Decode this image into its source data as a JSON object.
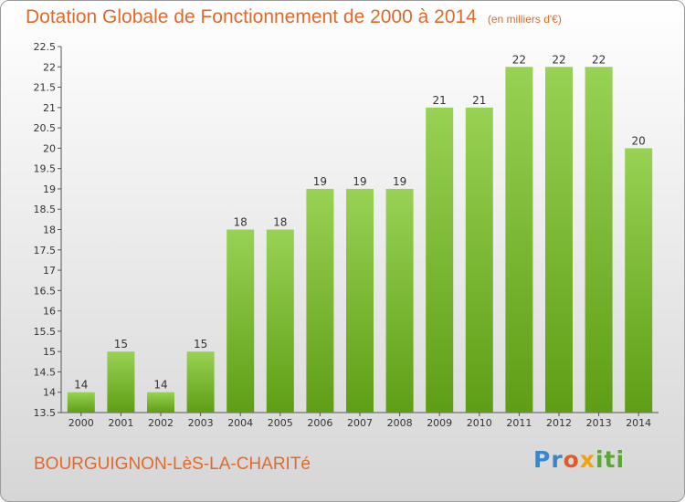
{
  "title": "Dotation Globale de Fonctionnement de 2000 à 2014",
  "unit_note": "(en milliers d'€)",
  "commune": "BOURGUIGNON-LèS-LA-CHARITé",
  "logo": {
    "parts": [
      "Pr",
      "o",
      "x",
      "iti"
    ],
    "colors": [
      "#3a86c8",
      "#e05a2a",
      "#f2a20c",
      "#5aa832"
    ]
  },
  "colors": {
    "bar_top": "#98d254",
    "bar_bottom": "#5e9e15",
    "title": "#e2692b"
  },
  "chart_data": {
    "type": "bar",
    "title": "Dotation Globale de Fonctionnement de 2000 à 2014",
    "xlabel": "",
    "ylabel": "",
    "categories": [
      "2000",
      "2001",
      "2002",
      "2003",
      "2004",
      "2005",
      "2006",
      "2007",
      "2008",
      "2009",
      "2010",
      "2011",
      "2012",
      "2013",
      "2014"
    ],
    "values": [
      14,
      15,
      14,
      15,
      18,
      18,
      19,
      19,
      19,
      21,
      21,
      22,
      22,
      22,
      20
    ],
    "data_labels": [
      "14",
      "15",
      "14",
      "15",
      "18",
      "18",
      "19",
      "19",
      "19",
      "21",
      "21",
      "22",
      "22",
      "22",
      "20"
    ],
    "ylim": [
      13.5,
      22.5
    ],
    "yticks": [
      13.5,
      14,
      14.5,
      15,
      15.5,
      16,
      16.5,
      17,
      17.5,
      18,
      18.5,
      19,
      19.5,
      20,
      20.5,
      21,
      21.5,
      22,
      22.5
    ],
    "ytick_labels": [
      "13.5",
      "14",
      "14.5",
      "15",
      "15.5",
      "16",
      "16.5",
      "17",
      "17.5",
      "18",
      "18.5",
      "19",
      "19.5",
      "20",
      "20.5",
      "21",
      "21.5",
      "22",
      "22.5"
    ],
    "grid": false,
    "legend": "none"
  }
}
